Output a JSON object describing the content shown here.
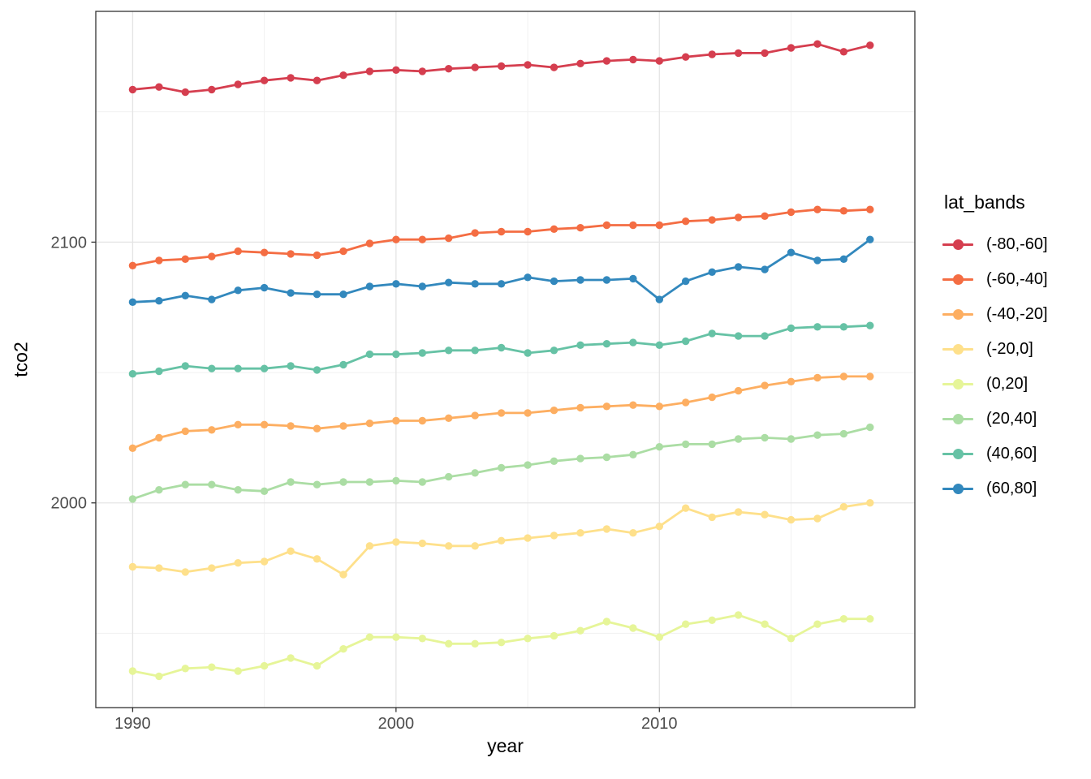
{
  "chart_data": {
    "type": "line",
    "title": "",
    "xlabel": "year",
    "ylabel": "tco2",
    "legend_title": "lat_bands",
    "legend_position": "right",
    "grid": true,
    "point_marker": "circle",
    "x": [
      1990,
      1991,
      1992,
      1993,
      1994,
      1995,
      1996,
      1997,
      1998,
      1999,
      2000,
      2001,
      2002,
      2003,
      2004,
      2005,
      2006,
      2007,
      2008,
      2009,
      2010,
      2011,
      2012,
      2013,
      2014,
      2015,
      2016,
      2017,
      2018
    ],
    "xlim": [
      1988.6,
      2019.7
    ],
    "ylim": [
      1921.5,
      2188.5
    ],
    "xticks": [
      1990,
      2000,
      2010
    ],
    "yticks": [
      2000,
      2100
    ],
    "x_minor": [
      1995,
      2005,
      2015
    ],
    "y_minor": [
      1950,
      2050,
      2150
    ],
    "series": [
      {
        "name": "(-80,-60]",
        "color": "#d53e4f",
        "values": [
          2158.5,
          2159.5,
          2157.5,
          2158.5,
          2160.5,
          2162,
          2163,
          2162,
          2164,
          2165.5,
          2166,
          2165.5,
          2166.5,
          2167,
          2167.5,
          2168,
          2167,
          2168.5,
          2169.5,
          2170,
          2169.5,
          2171,
          2172,
          2172.5,
          2172.5,
          2174.5,
          2176,
          2173,
          2175.5
        ]
      },
      {
        "name": "(-60,-40]",
        "color": "#f46d43",
        "values": [
          2091,
          2093,
          2093.5,
          2094.5,
          2096.5,
          2096,
          2095.5,
          2095,
          2096.5,
          2099.5,
          2101,
          2101,
          2101.5,
          2103.5,
          2104,
          2104,
          2105,
          2105.5,
          2106.5,
          2106.5,
          2106.5,
          2108,
          2108.5,
          2109.5,
          2110,
          2111.5,
          2112.5,
          2112,
          2112.5
        ]
      },
      {
        "name": "(-40,-20]",
        "color": "#fdae61",
        "values": [
          2021,
          2025,
          2027.5,
          2028,
          2030,
          2030,
          2029.5,
          2028.5,
          2029.5,
          2030.5,
          2031.5,
          2031.5,
          2032.5,
          2033.5,
          2034.5,
          2034.5,
          2035.5,
          2036.5,
          2037,
          2037.5,
          2037,
          2038.5,
          2040.5,
          2043,
          2045,
          2046.5,
          2048,
          2048.5,
          2048.5
        ]
      },
      {
        "name": "(-20,0]",
        "color": "#fee08b",
        "values": [
          1975.5,
          1975,
          1973.5,
          1975,
          1977,
          1977.5,
          1981.5,
          1978.5,
          1972.5,
          1983.5,
          1985,
          1984.5,
          1983.5,
          1983.5,
          1985.5,
          1986.5,
          1987.5,
          1988.5,
          1990,
          1988.5,
          1991,
          1998,
          1994.5,
          1996.5,
          1995.5,
          1993.5,
          1994,
          1998.5,
          2000
        ]
      },
      {
        "name": "(0,20]",
        "color": "#e6f598",
        "values": [
          1935.5,
          1933.5,
          1936.5,
          1937,
          1935.5,
          1937.5,
          1940.5,
          1937.5,
          1944,
          1948.5,
          1948.5,
          1948,
          1946,
          1946,
          1946.5,
          1948,
          1949,
          1951,
          1954.5,
          1952,
          1948.5,
          1953.5,
          1955,
          1957,
          1953.5,
          1948,
          1953.5,
          1955.5,
          1955.5
        ]
      },
      {
        "name": "(20,40]",
        "color": "#abdda4",
        "values": [
          2001.5,
          2005,
          2007,
          2007,
          2005,
          2004.5,
          2008,
          2007,
          2008,
          2008,
          2008.5,
          2008,
          2010,
          2011.5,
          2013.5,
          2014.5,
          2016,
          2017,
          2017.5,
          2018.5,
          2021.5,
          2022.5,
          2022.5,
          2024.5,
          2025,
          2024.5,
          2026,
          2026.5,
          2029
        ]
      },
      {
        "name": "(40,60]",
        "color": "#66c2a5",
        "values": [
          2049.5,
          2050.5,
          2052.5,
          2051.5,
          2051.5,
          2051.5,
          2052.5,
          2051,
          2053,
          2057,
          2057,
          2057.5,
          2058.5,
          2058.5,
          2059.5,
          2057.5,
          2058.5,
          2060.5,
          2061,
          2061.5,
          2060.5,
          2062,
          2065,
          2064,
          2064,
          2067,
          2067.5,
          2067.5,
          2068
        ]
      },
      {
        "name": "(60,80]",
        "color": "#3288bd",
        "values": [
          2077,
          2077.5,
          2079.5,
          2078,
          2081.5,
          2082.5,
          2080.5,
          2080,
          2080,
          2083,
          2084,
          2083,
          2084.5,
          2084,
          2084,
          2086.5,
          2085,
          2085.5,
          2085.5,
          2086,
          2078,
          2085,
          2088.5,
          2090.5,
          2089.5,
          2096,
          2093,
          2093.5,
          2101
        ]
      }
    ]
  },
  "theme": {
    "panel_bg": "#ffffff",
    "panel_border": "#333333",
    "grid_major": "#e4e4e4",
    "grid_minor": "#f1f1f1",
    "tick_color": "#333333",
    "tick_label_color": "#4d4d4d",
    "axis_title_color": "#000000"
  }
}
